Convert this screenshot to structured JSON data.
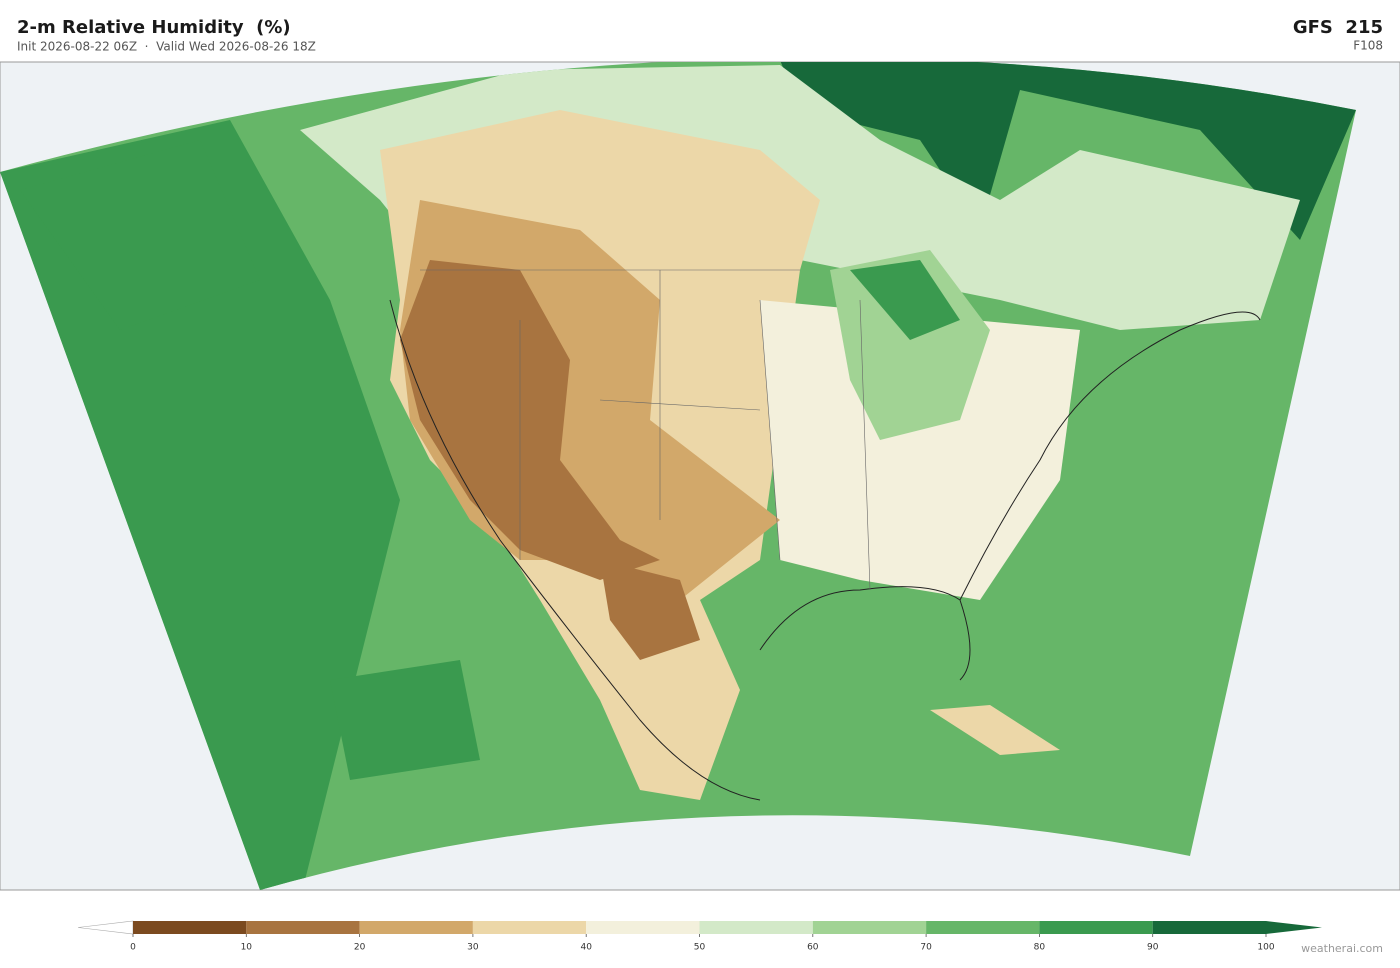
{
  "header": {
    "title": "2-m Relative Humidity  (%)",
    "subtitle": "Init 2026-08-22 06Z  ·  Valid Wed 2026-08-26 18Z",
    "model": "GFS  215",
    "forecast_hour": "F108"
  },
  "colorbar": {
    "ticks": [
      0,
      10,
      20,
      30,
      40,
      50,
      60,
      70,
      80,
      90,
      100
    ],
    "colors": [
      "#7b4a1f",
      "#a87440",
      "#d2a86a",
      "#ecd7a8",
      "#f3f0dc",
      "#d3e9c8",
      "#a1d394",
      "#66b668",
      "#3a9a4f",
      "#17693a"
    ],
    "under_color": "#ffffff",
    "over_color": "#17693a"
  },
  "credit": "weatherai.com"
}
